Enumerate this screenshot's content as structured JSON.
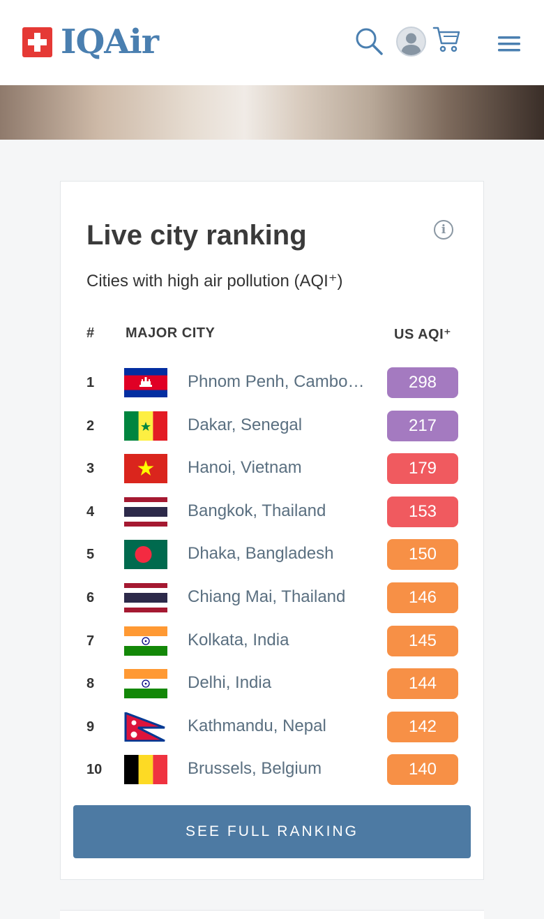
{
  "brand": {
    "name": "IQAir",
    "accent": "#4a7fb0",
    "badge_color": "#e53935"
  },
  "header": {
    "icons": [
      "search-icon",
      "avatar",
      "cart-icon",
      "hamburger-menu-icon"
    ]
  },
  "ranking": {
    "title": "Live city ranking",
    "subtitle": "Cities with high air pollution (AQI⁺)",
    "columns": {
      "rank": "#",
      "city": "MAJOR CITY",
      "aqi": "US AQI⁺"
    },
    "rows": [
      {
        "rank": "1",
        "city": "Phnom Penh, Cambodia",
        "aqi": "298",
        "color": "#a47ac0",
        "flag": "cambodia"
      },
      {
        "rank": "2",
        "city": "Dakar, Senegal",
        "aqi": "217",
        "color": "#a47ac0",
        "flag": "senegal"
      },
      {
        "rank": "3",
        "city": "Hanoi, Vietnam",
        "aqi": "179",
        "color": "#f05a5f",
        "flag": "vietnam"
      },
      {
        "rank": "4",
        "city": "Bangkok, Thailand",
        "aqi": "153",
        "color": "#f05a5f",
        "flag": "thailand"
      },
      {
        "rank": "5",
        "city": "Dhaka, Bangladesh",
        "aqi": "150",
        "color": "#f79046",
        "flag": "bangladesh"
      },
      {
        "rank": "6",
        "city": "Chiang Mai, Thailand",
        "aqi": "146",
        "color": "#f79046",
        "flag": "thailand"
      },
      {
        "rank": "7",
        "city": "Kolkata, India",
        "aqi": "145",
        "color": "#f79046",
        "flag": "india"
      },
      {
        "rank": "8",
        "city": "Delhi, India",
        "aqi": "144",
        "color": "#f79046",
        "flag": "india"
      },
      {
        "rank": "9",
        "city": "Kathmandu, Nepal",
        "aqi": "142",
        "color": "#f79046",
        "flag": "nepal"
      },
      {
        "rank": "10",
        "city": "Brussels, Belgium",
        "aqi": "140",
        "color": "#f79046",
        "flag": "belgium"
      }
    ],
    "button_label": "SEE FULL RANKING"
  }
}
